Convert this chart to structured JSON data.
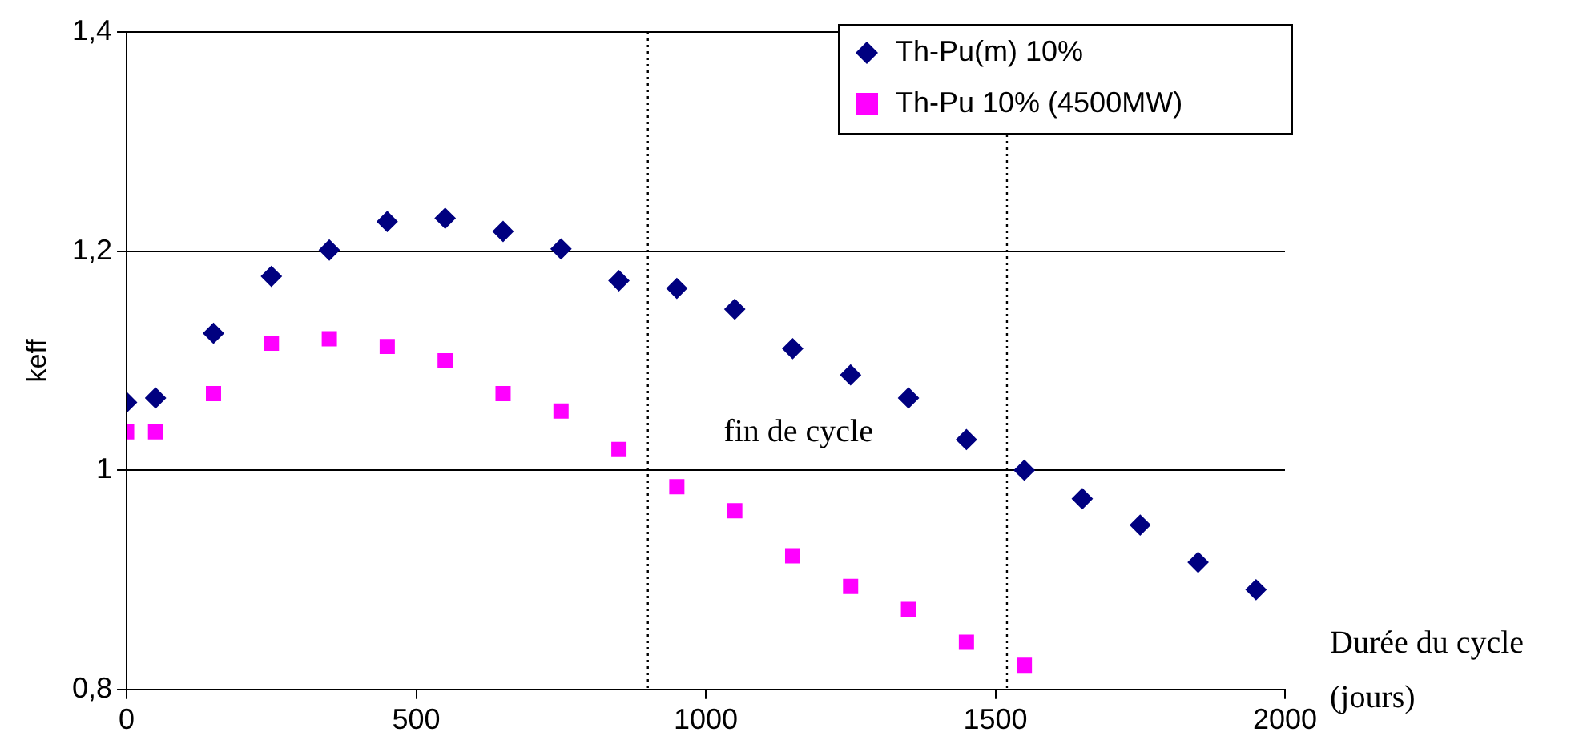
{
  "chart_data": {
    "type": "scatter",
    "xlabel": "Durée du cycle (jours)",
    "ylabel": "keff",
    "xlim": [
      0,
      2000
    ],
    "xticks": [
      0,
      500,
      1000,
      1500,
      2000
    ],
    "ylim": [
      0.8,
      1.4
    ],
    "yticks": [
      {
        "value": 0.8,
        "label": "0,8"
      },
      {
        "value": 1,
        "label": "1"
      },
      {
        "value": 1.2,
        "label": "1,2"
      },
      {
        "value": 1.4,
        "label": "1,4"
      }
    ],
    "grid": "y",
    "legend": "top right",
    "series": [
      {
        "name": "Th-Pu(m) 10%",
        "color": "#000080",
        "marker": "diamond",
        "x": [
          0,
          50,
          150,
          250,
          350,
          450,
          550,
          650,
          750,
          850,
          950,
          1050,
          1150,
          1250,
          1350,
          1450,
          1550,
          1650,
          1750,
          1850,
          1950
        ],
        "values": [
          1.062,
          1.066,
          1.125,
          1.177,
          1.201,
          1.227,
          1.23,
          1.218,
          1.202,
          1.173,
          1.166,
          1.147,
          1.111,
          1.087,
          1.066,
          1.028,
          1.0,
          0.974,
          0.95,
          0.916,
          0.891
        ]
      },
      {
        "name": "Th-Pu 10% (4500MW)",
        "color": "#ff00ff",
        "marker": "square",
        "x": [
          0,
          50,
          150,
          250,
          350,
          450,
          550,
          650,
          750,
          850,
          950,
          1050,
          1150,
          1250,
          1350,
          1450,
          1550
        ],
        "values": [
          1.035,
          1.035,
          1.07,
          1.116,
          1.12,
          1.113,
          1.1,
          1.07,
          1.054,
          1.019,
          0.985,
          0.963,
          0.922,
          0.894,
          0.873,
          0.843,
          0.822
        ]
      }
    ],
    "ref_lines": [
      {
        "axis": "x",
        "value": 900,
        "color": "#000000",
        "line_style": "dotted"
      },
      {
        "axis": "x",
        "value": 1520,
        "color": "#000000",
        "line_style": "dotted"
      }
    ],
    "annotations": [
      "fin de cycle"
    ]
  }
}
